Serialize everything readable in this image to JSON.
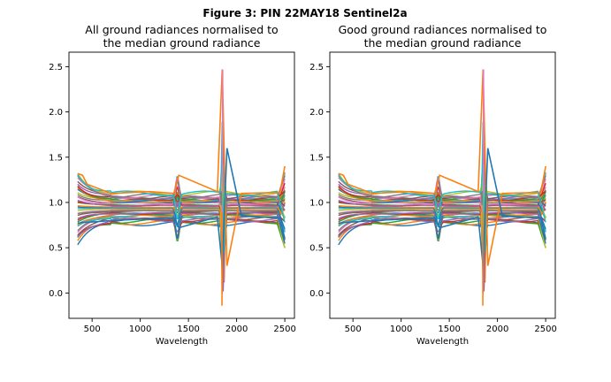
{
  "figure_title": "Figure 3: PIN 22MAY18  Sentinel2a",
  "chart_data": [
    {
      "type": "line",
      "title_lines": [
        "All ground radiances normalised to",
        "the median ground radiance"
      ],
      "xlabel": "Wavelength",
      "ylabel": "",
      "xlim": [
        260,
        2600
      ],
      "ylim": [
        -0.28,
        2.66
      ],
      "xticks": [
        500,
        1000,
        1500,
        2000,
        2500
      ],
      "yticks": [
        0.0,
        0.5,
        1.0,
        1.5,
        2.0,
        2.5
      ],
      "xtick_labels": [
        "500",
        "1000",
        "1500",
        "2000",
        "2500"
      ],
      "ytick_labels": [
        "0.0",
        "0.5",
        "1.0",
        "1.5",
        "2.0",
        "2.5"
      ],
      "grid": false,
      "legend": "none",
      "series_count": 40,
      "spike_max_y": 2.47,
      "spike_min_y": -0.14,
      "series": [
        {
          "x": [
            350,
            400,
            450,
            700,
            1100,
            1350,
            1400,
            1800,
            1850,
            1900,
            2050,
            2450,
            2500
          ],
          "values": [
            1.32,
            1.3,
            1.2,
            1.1,
            1.12,
            1.1,
            1.3,
            1.12,
            2.47,
            0.3,
            1.1,
            1.11,
            1.4
          ],
          "color": "#ff7f0e"
        },
        {
          "x": [
            350,
            400,
            450,
            700,
            1100,
            1350,
            1400,
            1800,
            1850,
            1900,
            2050,
            2450,
            2500
          ],
          "values": [
            0.77,
            0.78,
            0.78,
            0.8,
            0.82,
            0.83,
            0.72,
            0.84,
            0.3,
            1.6,
            0.85,
            0.83,
            0.6
          ],
          "color": "#1f77b4"
        }
      ]
    },
    {
      "type": "line",
      "title_lines": [
        "Good ground radiances normalised to",
        "the median ground radiance"
      ],
      "xlabel": "Wavelength",
      "ylabel": "",
      "xlim": [
        260,
        2600
      ],
      "ylim": [
        -0.28,
        2.66
      ],
      "xticks": [
        500,
        1000,
        1500,
        2000,
        2500
      ],
      "yticks": [
        0.0,
        0.5,
        1.0,
        1.5,
        2.0,
        2.5
      ],
      "xtick_labels": [
        "500",
        "1000",
        "1500",
        "2000",
        "2500"
      ],
      "ytick_labels": [
        "0.0",
        "0.5",
        "1.0",
        "1.5",
        "2.0",
        "2.5"
      ],
      "grid": false,
      "legend": "none",
      "series_count": 40,
      "spike_max_y": 2.47,
      "spike_min_y": -0.14,
      "series": [
        {
          "x": [
            350,
            400,
            450,
            700,
            1100,
            1350,
            1400,
            1800,
            1850,
            1900,
            2050,
            2450,
            2500
          ],
          "values": [
            1.32,
            1.3,
            1.2,
            1.1,
            1.12,
            1.1,
            1.3,
            1.12,
            2.47,
            0.3,
            1.1,
            1.11,
            1.4
          ],
          "color": "#ff7f0e"
        },
        {
          "x": [
            350,
            400,
            450,
            700,
            1100,
            1350,
            1400,
            1800,
            1850,
            1900,
            2050,
            2450,
            2500
          ],
          "values": [
            0.77,
            0.78,
            0.78,
            0.8,
            0.82,
            0.83,
            0.72,
            0.84,
            0.3,
            1.6,
            0.85,
            0.83,
            0.6
          ],
          "color": "#1f77b4"
        }
      ]
    }
  ],
  "palette": [
    "#1f77b4",
    "#ff7f0e",
    "#2ca02c",
    "#d62728",
    "#9467bd",
    "#8c564b",
    "#e377c2",
    "#7f7f7f",
    "#bcbd22",
    "#17becf"
  ]
}
